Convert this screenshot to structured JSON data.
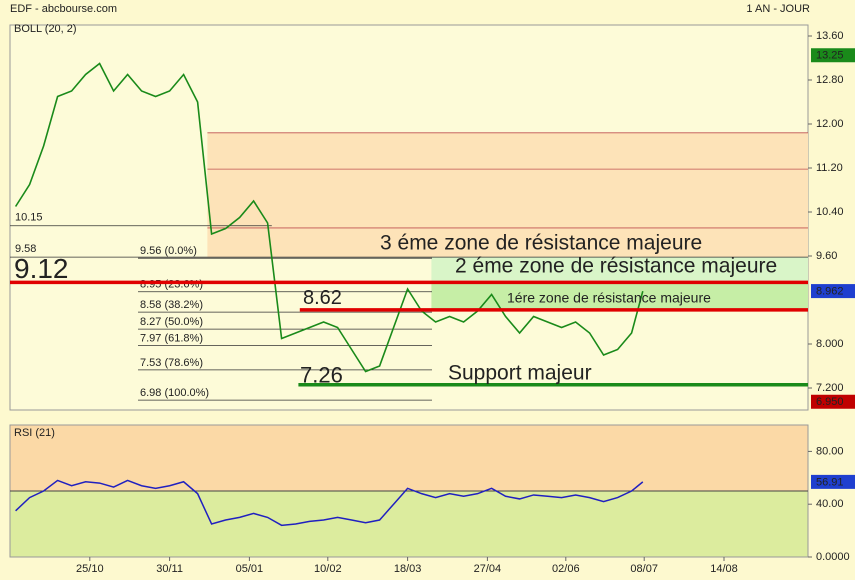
{
  "header": {
    "title": "EDF - abcbourse.com",
    "period": "1 AN - JOUR"
  },
  "chart_data": [
    {
      "type": "line",
      "label": "BOLL (20, 2)",
      "x": [
        0.4,
        1.4,
        2.4,
        3.4,
        4.4,
        5.4,
        6.4,
        7.4,
        8.4,
        9.4,
        10.4,
        11.4,
        12.4,
        13.4,
        14.4,
        15.4,
        16.4,
        17.4,
        18.4,
        19.4,
        20.4,
        21.4,
        22.4,
        23.4,
        24.4,
        25.4,
        26.4,
        27.4,
        28.4,
        29.4,
        30.4,
        31.4,
        32.4,
        33.4,
        34.4,
        35.4,
        36.4,
        37.4,
        38.4,
        39.4,
        40.4,
        41.4,
        42.4,
        43.4,
        44.4,
        45.2
      ],
      "values": [
        10.5,
        10.9,
        11.6,
        12.5,
        12.6,
        12.9,
        13.1,
        12.6,
        12.9,
        12.6,
        12.5,
        12.6,
        12.9,
        12.4,
        10.0,
        10.1,
        10.3,
        10.6,
        10.2,
        8.1,
        8.2,
        8.3,
        8.4,
        8.3,
        7.9,
        7.5,
        7.6,
        8.3,
        9.0,
        8.6,
        8.4,
        8.5,
        8.4,
        8.6,
        8.9,
        8.5,
        8.2,
        8.5,
        8.4,
        8.3,
        8.4,
        8.2,
        7.8,
        7.9,
        8.2,
        8.96
      ],
      "color": "#1a8a1a",
      "xlim": [
        0,
        57
      ],
      "ylim": [
        6.8,
        13.8
      ],
      "yticks": [
        {
          "value": 13.6,
          "label": "13.60"
        },
        {
          "value": 12.8,
          "label": "12.80"
        },
        {
          "value": 12,
          "label": "12.00"
        },
        {
          "value": 11.2,
          "label": "11.20"
        },
        {
          "value": 10.4,
          "label": "10.40"
        },
        {
          "value": 9.6,
          "label": "9.60"
        },
        {
          "value": 8,
          "label": "8.000"
        },
        {
          "value": 7.2,
          "label": "7.200"
        }
      ],
      "zones": [
        {
          "x0": 14.1,
          "x1": 57,
          "from": 9.58,
          "to": 11.84,
          "color": "#fde3b8"
        },
        {
          "x0": 30.1,
          "x1": 57,
          "from": 9.12,
          "to": 9.58,
          "color": "#d9f5c8"
        },
        {
          "x0": 30.1,
          "x1": 57,
          "from": 8.62,
          "to": 9.12,
          "color": "#c6eea6"
        }
      ],
      "zone_lines": [
        11.84,
        11.18,
        10.11
      ],
      "levels": [
        {
          "value": 10.15,
          "x0": 0,
          "x1": 18.7
        },
        {
          "value": 9.58,
          "x0": 0,
          "x1": 57
        }
      ],
      "fib_levels": [
        {
          "value": 9.56,
          "label": "9.56  (0.0%)"
        },
        {
          "value": 8.95,
          "label": "8.95  (23.6%)"
        },
        {
          "value": 8.58,
          "label": "8.58  (38.2%)"
        },
        {
          "value": 8.27,
          "label": "8.27  (50.0%)"
        },
        {
          "value": 7.97,
          "label": "7.97  (61.8%)"
        },
        {
          "value": 7.53,
          "label": "7.53  (78.6%)"
        },
        {
          "value": 6.98,
          "label": "6.98  (100.0%)"
        }
      ],
      "major_levels": [
        {
          "value": 9.12,
          "x0": 0,
          "x1": 57,
          "color": "#e00000"
        },
        {
          "value": 8.62,
          "x0": 20.7,
          "x1": 57,
          "color": "#e00000"
        },
        {
          "value": 7.26,
          "x0": 20.6,
          "x1": 57,
          "color": "#1a8a1a"
        }
      ],
      "annotations": [
        {
          "text": "3 éme zone de résistance majeure",
          "color": "#e00000"
        },
        {
          "text": "2 éme zone de résistance majeure",
          "color": "#d83030"
        },
        {
          "text": "1ére zone de résistance majeure",
          "color": "#1a8a1a"
        },
        {
          "text": "Support majeur",
          "color": "#1a8a1a"
        }
      ],
      "badges": [
        {
          "value": 13.25,
          "color": "#1a8a1a"
        },
        {
          "value": 8.962,
          "color": "#1f3fcf"
        },
        {
          "value": 6.95,
          "label": "6.950",
          "color": "#c00000"
        }
      ]
    },
    {
      "type": "line",
      "label": "RSI (21)",
      "x": [
        0.4,
        1.4,
        2.4,
        3.4,
        4.4,
        5.4,
        6.4,
        7.4,
        8.4,
        9.4,
        10.4,
        11.4,
        12.4,
        13.4,
        14.4,
        15.4,
        16.4,
        17.4,
        18.4,
        19.4,
        20.4,
        21.4,
        22.4,
        23.4,
        24.4,
        25.4,
        26.4,
        27.4,
        28.4,
        29.4,
        30.4,
        31.4,
        32.4,
        33.4,
        34.4,
        35.4,
        36.4,
        37.4,
        38.4,
        39.4,
        40.4,
        41.4,
        42.4,
        43.4,
        44.4,
        45.2
      ],
      "values": [
        35,
        45,
        50,
        58,
        54,
        57,
        56,
        53,
        58,
        54,
        52,
        54,
        57,
        48,
        25,
        28,
        30,
        33,
        30,
        24,
        25,
        27,
        28,
        30,
        28,
        26,
        28,
        40,
        52,
        48,
        45,
        48,
        46,
        48,
        52,
        46,
        44,
        47,
        46,
        45,
        47,
        45,
        42,
        45,
        50,
        56.91
      ],
      "color": "#2020c0",
      "midline": 50,
      "xlim": [
        0,
        57
      ],
      "ylim": [
        0,
        100
      ],
      "yticks": [
        {
          "value": 80,
          "label": "80.00"
        },
        {
          "value": 40,
          "label": "40.00"
        },
        {
          "value": 0,
          "label": "0.0000"
        }
      ],
      "xticks": [
        {
          "value": 5.7,
          "label": "25/10"
        },
        {
          "value": 11.4,
          "label": "30/11"
        },
        {
          "value": 17.1,
          "label": "05/01"
        },
        {
          "value": 22.7,
          "label": "10/02"
        },
        {
          "value": 28.4,
          "label": "18/03"
        },
        {
          "value": 34.1,
          "label": "27/04"
        },
        {
          "value": 39.7,
          "label": "02/06"
        },
        {
          "value": 45.3,
          "label": "08/07"
        },
        {
          "value": 51,
          "label": "14/08"
        }
      ],
      "badges": [
        {
          "value": 56.91,
          "color": "#1f3fcf"
        }
      ]
    }
  ]
}
